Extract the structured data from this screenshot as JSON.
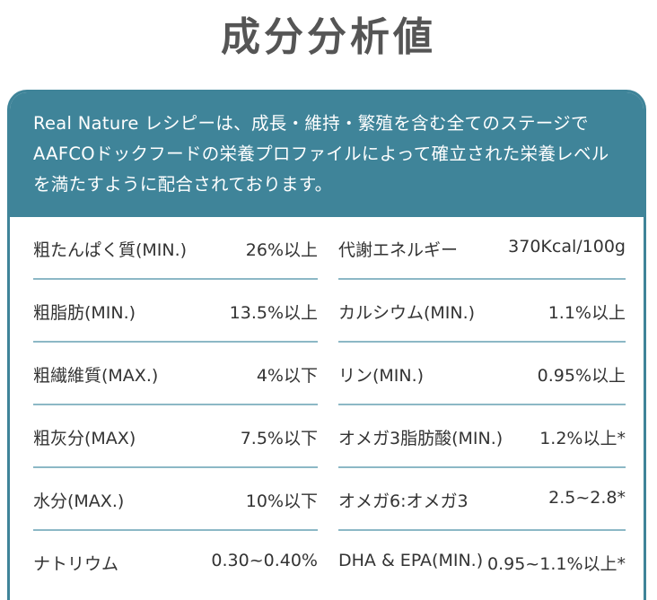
{
  "title": "成分分析値",
  "header_text": "Real Nature レシピーは、成長・維持・繁殖を含む全てのステージで AAFCOドックフードの栄養プロファイルによって確立された栄養レベルを満たすように配合されております。",
  "left_rows": [
    {
      "label": "粗たんぱく質(MIN.)",
      "value": "26%以上"
    },
    {
      "label": "粗脂肪(MIN.)",
      "value": "13.5%以上"
    },
    {
      "label": "粗繊維質(MAX.)",
      "value": "4%以下"
    },
    {
      "label": "粗灰分(MAX)",
      "value": "7.5%以下"
    },
    {
      "label": "水分(MAX.)",
      "value": "10%以下"
    },
    {
      "label": "ナトリウム",
      "value": "0.30~0.40%"
    }
  ],
  "right_rows": [
    {
      "label": "代謝エネルギー",
      "value": "370Kcal/100g"
    },
    {
      "label": "カルシウム(MIN.)",
      "value": "1.1%以上"
    },
    {
      "label": "リン(MIN.)",
      "value": "0.95%以上"
    },
    {
      "label": "オメガ3脂肪酸(MIN.)",
      "value": "1.2%以上*"
    },
    {
      "label": "オメガ6:オメガ3",
      "value": "2.5~2.8*"
    },
    {
      "label": "DHA & EPA(MIN.)",
      "value": "0.95~1.1%以上*"
    }
  ],
  "colors": {
    "accent": "#3f8499",
    "separator": "#8cb8c6",
    "title": "#555555",
    "text": "#333333"
  }
}
